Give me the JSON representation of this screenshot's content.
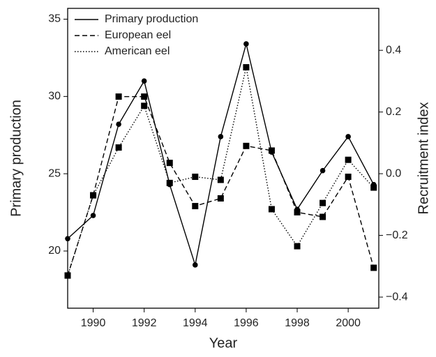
{
  "chart_data": {
    "type": "line",
    "x": [
      1989,
      1990,
      1991,
      1992,
      1993,
      1994,
      1995,
      1996,
      1997,
      1998,
      1999,
      2000,
      2001
    ],
    "xlabel": "Year",
    "ylabel": "Primary production",
    "y2label": "Recruitment index",
    "xlim": [
      1989,
      2001.2
    ],
    "xticks": [
      1990,
      1992,
      1994,
      1996,
      1998,
      2000
    ],
    "ylim": [
      16.3,
      35.7
    ],
    "yticks": [
      20,
      25,
      30,
      35
    ],
    "y2lim": [
      -0.436,
      0.536
    ],
    "y2ticks": [
      {
        "value": -0.4,
        "label": "−0.4"
      },
      {
        "value": -0.2,
        "label": "−0.2"
      },
      {
        "value": 0,
        "label": "0.0"
      },
      {
        "value": 0.2,
        "label": "0.2"
      },
      {
        "value": 0.4,
        "label": "0.4"
      }
    ],
    "legend": "upper left",
    "series": [
      {
        "name": "Primary production",
        "color": "#000000",
        "dash": "solid",
        "marker": "circle",
        "values": [
          20.8,
          22.3,
          28.2,
          31.0,
          24.3,
          19.1,
          27.4,
          33.4,
          26.4,
          22.7,
          25.2,
          27.4,
          24.3
        ]
      },
      {
        "name": "European eel",
        "color": "#000000",
        "dash": "dashed",
        "marker": "square",
        "axis": "y2",
        "values": [
          -0.33,
          -0.07,
          0.25,
          0.25,
          0.035,
          -0.105,
          -0.08,
          0.09,
          0.075,
          -0.125,
          -0.14,
          -0.01,
          -0.305
        ]
      },
      {
        "name": "American eel",
        "color": "#000000",
        "dash": "dotted",
        "marker": "square",
        "axis": "y2",
        "values": [
          -0.33,
          -0.07,
          0.085,
          0.22,
          -0.03,
          -0.01,
          -0.02,
          0.345,
          -0.115,
          -0.235,
          -0.095,
          0.045,
          -0.045
        ]
      }
    ]
  }
}
